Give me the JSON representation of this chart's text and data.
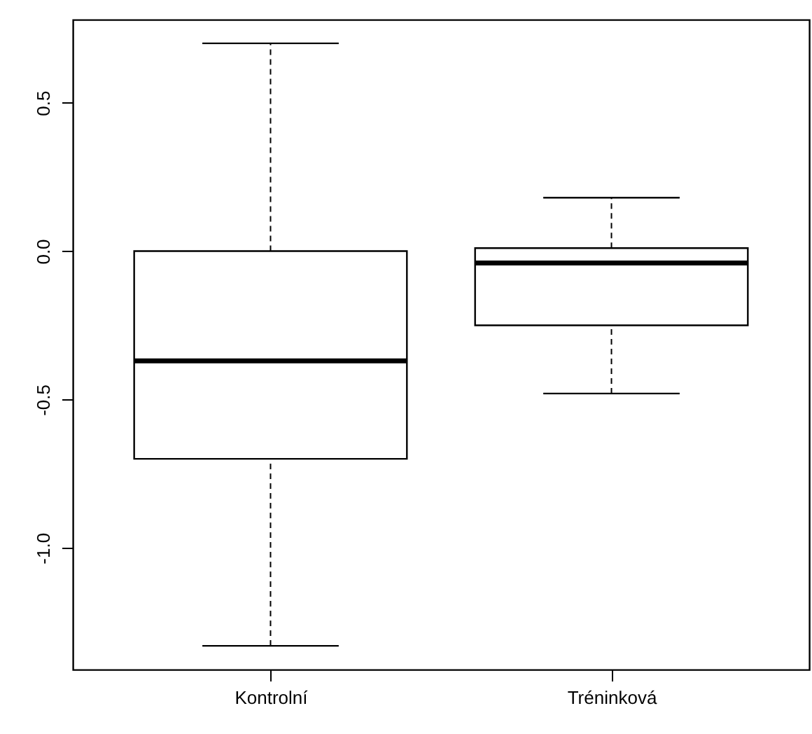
{
  "chart_data": {
    "type": "box",
    "categories": [
      "Kontrolní",
      "Tréninková"
    ],
    "boxes": [
      {
        "low": -1.33,
        "q1": -0.7,
        "median": -0.37,
        "q3": 0.0,
        "high": 0.7
      },
      {
        "low": -0.48,
        "q1": -0.25,
        "median": -0.04,
        "q3": 0.01,
        "high": 0.18
      }
    ],
    "ylim": [
      -1.41,
      0.78
    ],
    "yticks": [
      {
        "value": -1.0,
        "label": "-1.0"
      },
      {
        "value": -0.5,
        "label": "-0.5"
      },
      {
        "value": 0.0,
        "label": "0.0"
      },
      {
        "value": 0.5,
        "label": "0.5"
      }
    ],
    "grid": false,
    "color": "#ffffff"
  }
}
